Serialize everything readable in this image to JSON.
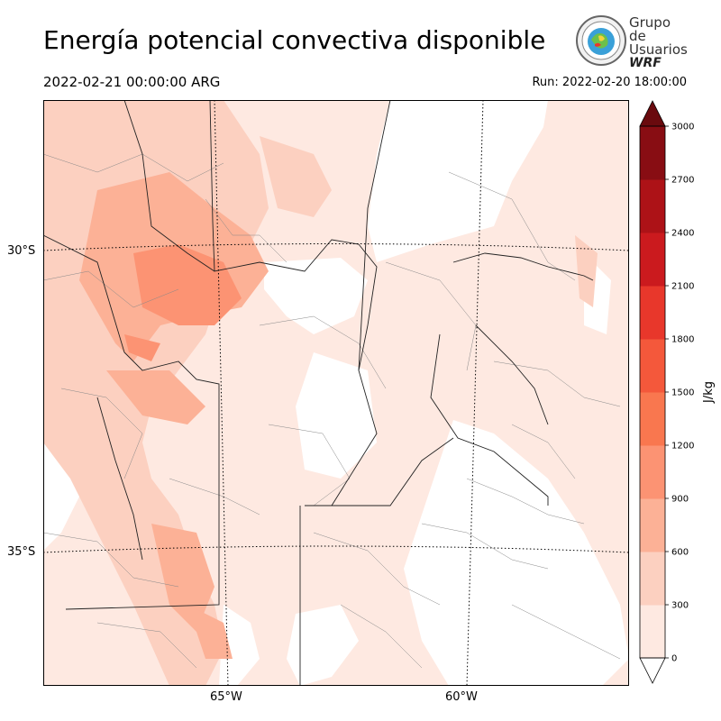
{
  "title": "Energía potencial convectiva disponible",
  "valid_time": "2022-02-21 00:00:00 ARG",
  "run_time": "Run: 2022-02-20 18:00:00",
  "logo": {
    "line1": "Grupo de",
    "line2": "Usuarios",
    "line3": "WRF"
  },
  "map": {
    "lat_labels": [
      "30°S",
      "35°S"
    ],
    "lon_labels": [
      "65°W",
      "60°W"
    ]
  },
  "colorbar": {
    "label": "J/kg",
    "ticks": [
      "0",
      "300",
      "600",
      "900",
      "1200",
      "1500",
      "1800",
      "2100",
      "2400",
      "2700",
      "3000"
    ],
    "colors": [
      "#fee9e1",
      "#fcd0c0",
      "#fcb196",
      "#fc9373",
      "#f9774f",
      "#f4583b",
      "#e8372b",
      "#cb1a1e",
      "#ad1217",
      "#880d13",
      "#6a0a0e"
    ]
  }
}
